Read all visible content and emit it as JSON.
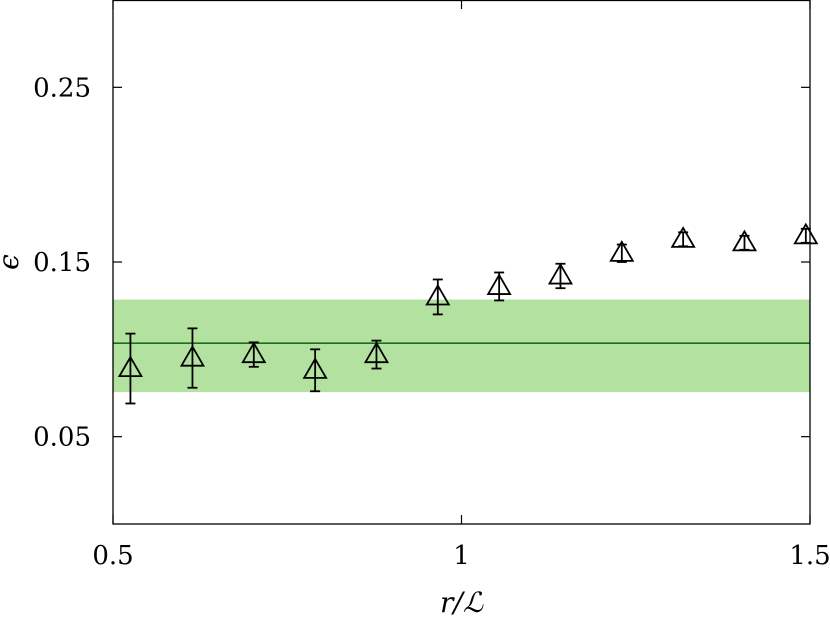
{
  "chart_data": {
    "type": "scatter",
    "xlabel": "r/ℒ",
    "ylabel": "ϵ",
    "xlim": [
      0.5,
      1.5
    ],
    "ylim": [
      0.0,
      0.3
    ],
    "x_ticks": [
      0.5,
      1,
      1.5
    ],
    "x_tick_labels": [
      "0.5",
      "1",
      "1.5"
    ],
    "y_ticks": [
      0.05,
      0.15,
      0.25
    ],
    "y_tick_labels": [
      "0.05",
      "0.15",
      "0.25"
    ],
    "grid": false,
    "series": [
      {
        "marker": "open-triangle",
        "color": "#000000",
        "points": [
          {
            "x": 0.525,
            "y": 0.089,
            "err": 0.02
          },
          {
            "x": 0.614,
            "y": 0.095,
            "err": 0.017
          },
          {
            "x": 0.702,
            "y": 0.097,
            "err": 0.007
          },
          {
            "x": 0.79,
            "y": 0.088,
            "err": 0.012
          },
          {
            "x": 0.878,
            "y": 0.097,
            "err": 0.008
          },
          {
            "x": 0.966,
            "y": 0.13,
            "err": 0.01
          },
          {
            "x": 1.054,
            "y": 0.136,
            "err": 0.008
          },
          {
            "x": 1.142,
            "y": 0.142,
            "err": 0.007
          },
          {
            "x": 1.23,
            "y": 0.155,
            "err": 0.005
          },
          {
            "x": 1.318,
            "y": 0.163,
            "err": 0.004
          },
          {
            "x": 1.406,
            "y": 0.161,
            "err": 0.004
          },
          {
            "x": 1.494,
            "y": 0.165,
            "err": 0.004
          }
        ]
      }
    ],
    "band": {
      "center": 0.1035,
      "low": 0.0755,
      "high": 0.1285,
      "fill": "#b3e2a0",
      "line_color": "#1f6e1f"
    }
  }
}
